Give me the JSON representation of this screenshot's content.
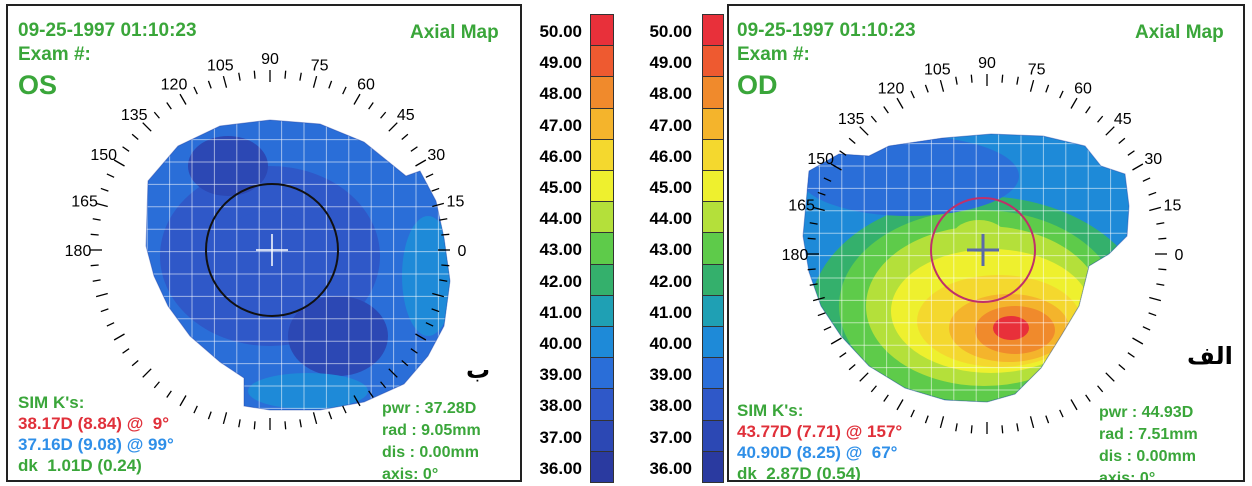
{
  "left_panel": {
    "datetime": "09-25-1997 01:10:23",
    "exam_label": "Exam #:",
    "eye": "OS",
    "map_title": "Axial Map",
    "sim_title": "SIM K's:",
    "k1": {
      "value": "38.17D",
      "ratio": "(8.84)",
      "at": "@",
      "axis": "9°"
    },
    "k2": {
      "value": "37.16D",
      "ratio": "(9.08)",
      "at": "@",
      "axis": "99°"
    },
    "dk": {
      "label": "dk",
      "value": "1.01D",
      "ratio": "(0.24)"
    },
    "pwr": "pwr : 37.28D",
    "rad": "rad : 9.05mm",
    "dis": "dis : 0.00mm",
    "axis": "axis:  0°",
    "tag": "ب"
  },
  "right_panel": {
    "datetime": "09-25-1997 01:10:23",
    "exam_label": "Exam #:",
    "eye": "OD",
    "map_title": "Axial Map",
    "sim_title": "SIM K's:",
    "k1": {
      "value": "43.77D",
      "ratio": "(7.71)",
      "at": "@",
      "axis": "157°"
    },
    "k2": {
      "value": "40.90D",
      "ratio": "(8.25)",
      "at": "@",
      "axis": "67°"
    },
    "dk": {
      "label": "dk",
      "value": "2.87D",
      "ratio": "(0.54)"
    },
    "pwr": "pwr : 44.93D",
    "rad": "rad :  7.51mm",
    "dis": "dis : 0.00mm",
    "axis": "axis:  0°",
    "tag": "الف"
  },
  "angle_labels": [
    "180",
    "165",
    "150",
    "135",
    "120",
    "105",
    "90",
    "75",
    "60",
    "45",
    "30",
    "15",
    "0"
  ],
  "scale_values": [
    "50.00",
    "49.00",
    "48.00",
    "47.00",
    "46.00",
    "45.00",
    "44.00",
    "43.00",
    "42.00",
    "41.00",
    "40.00",
    "39.00",
    "38.00",
    "37.00",
    "36.00"
  ],
  "scale_colors": [
    "#e8303a",
    "#ee5a30",
    "#f08a2c",
    "#f4b42c",
    "#f4d82e",
    "#eef02e",
    "#b4e03a",
    "#5ecb4a",
    "#34b06c",
    "#1fa0b4",
    "#1e8ad8",
    "#2a6ed8",
    "#2f58c8",
    "#2c48b4",
    "#2a3aa0"
  ]
}
